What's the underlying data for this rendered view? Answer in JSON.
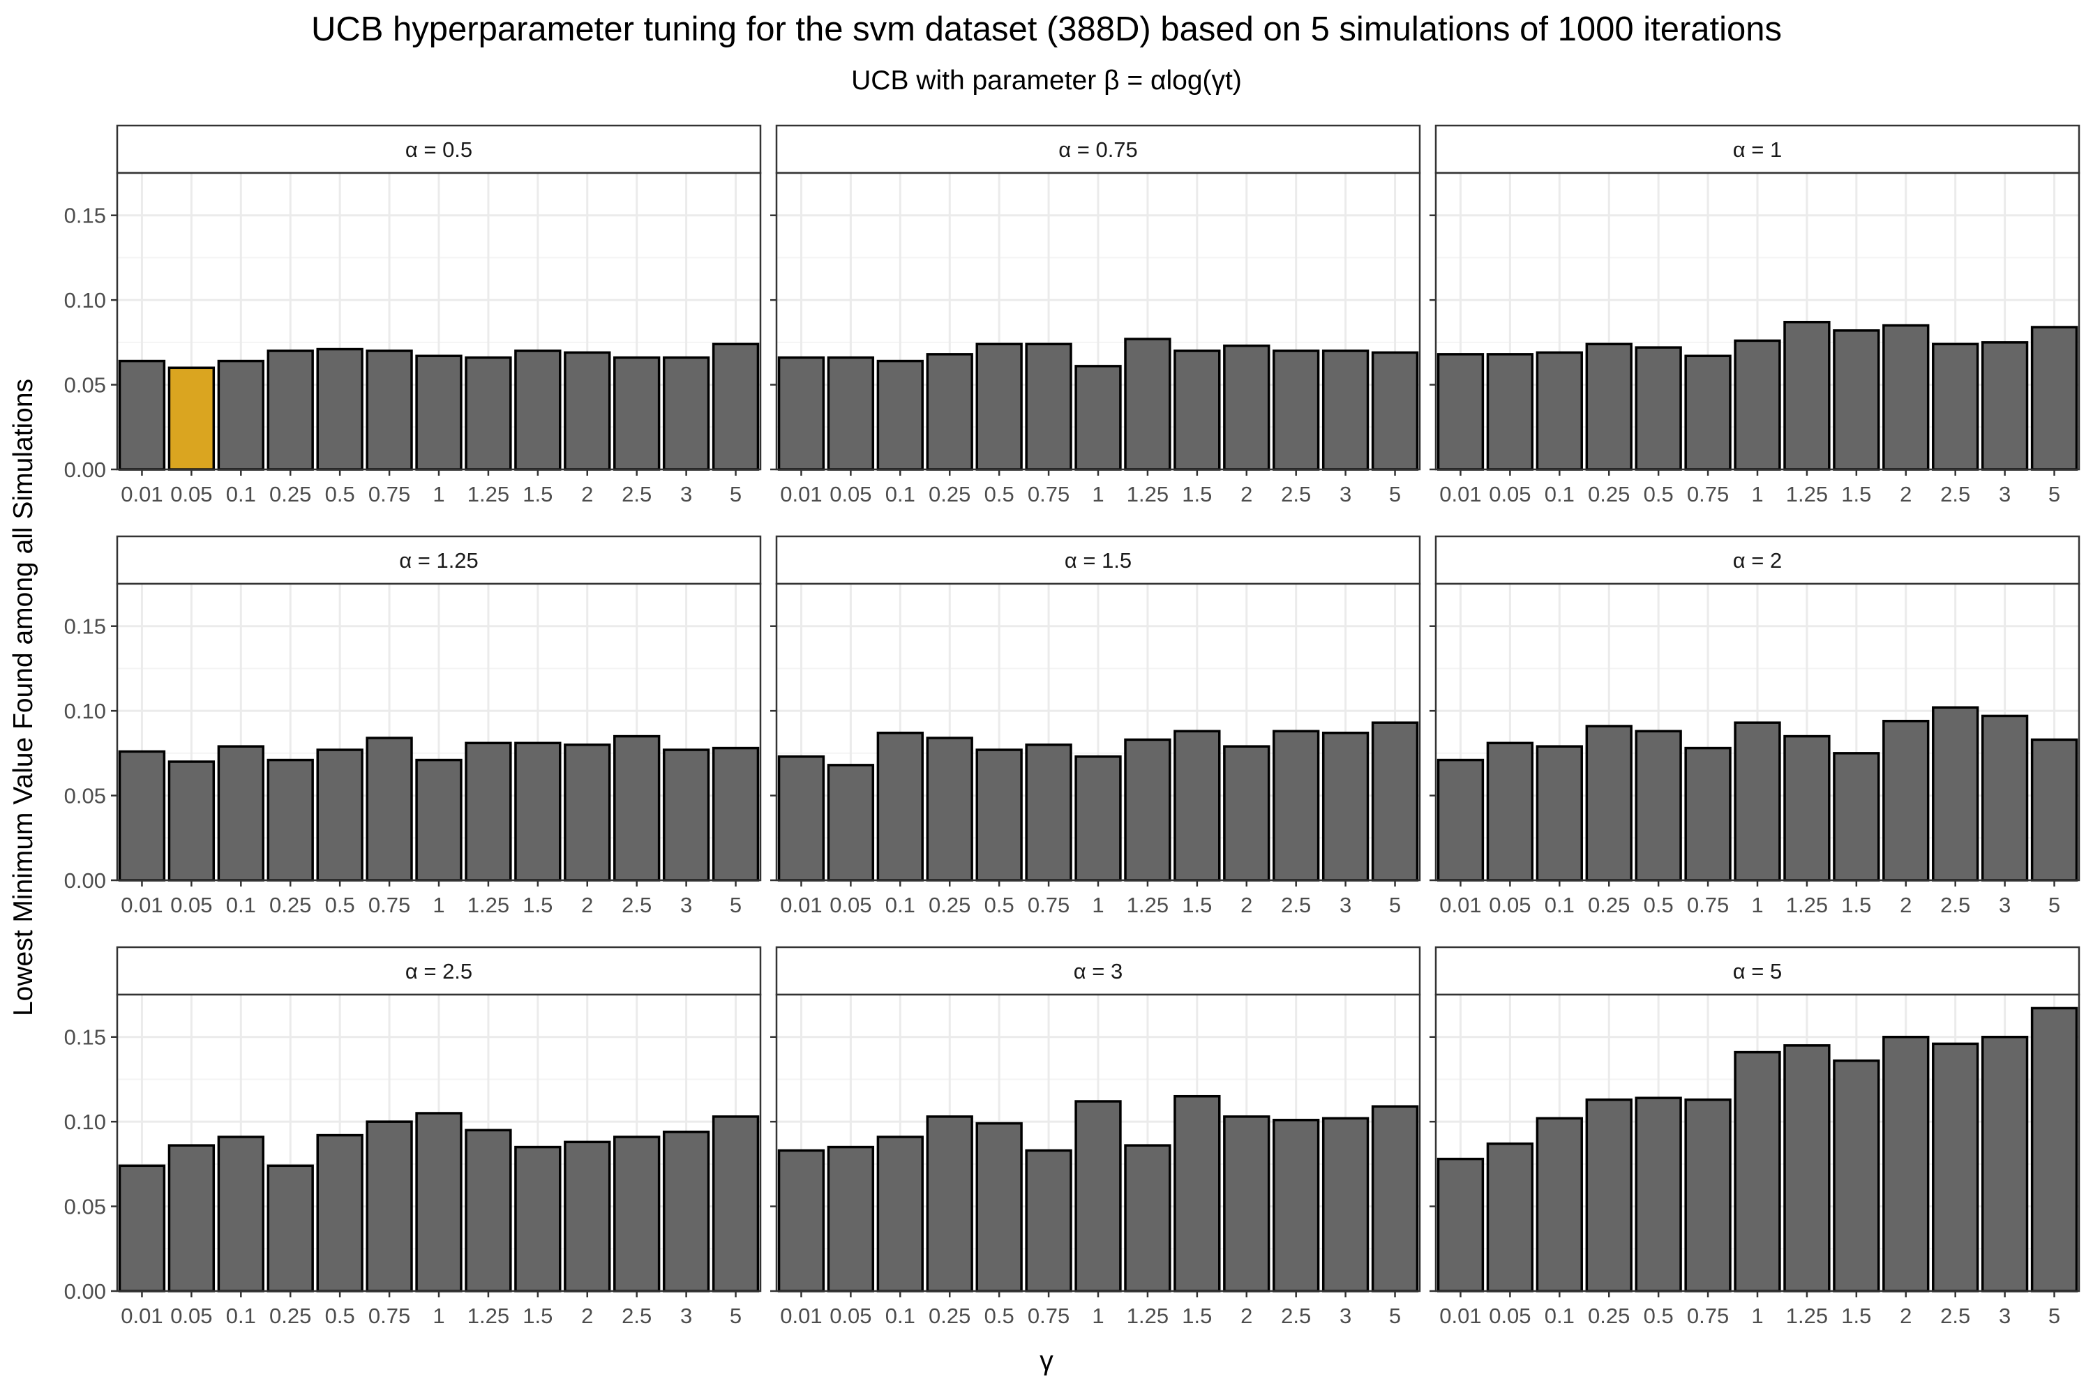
{
  "chart_data": {
    "type": "bar",
    "title": "UCB hyperparameter tuning for the svm dataset (388D) based on 5 simulations of 1000 iterations",
    "subtitle": "UCB with parameter β = αlog(γt)",
    "xlabel": "γ",
    "ylabel": "Lowest Minimum Value Found among all Simulations",
    "ylim": [
      0,
      0.175
    ],
    "yticks": [
      "0.00",
      "0.05",
      "0.10",
      "0.15"
    ],
    "grid": true,
    "categories": [
      "0.01",
      "0.05",
      "0.1",
      "0.25",
      "0.5",
      "0.75",
      "1",
      "1.25",
      "1.5",
      "2",
      "2.5",
      "3",
      "5"
    ],
    "colors": {
      "bar": "#666666",
      "highlight": "#DAA520",
      "outline": "#000000",
      "grid": "#ebebeb",
      "strip": "#ffffff"
    },
    "highlight": {
      "facet": 0,
      "index": 1
    },
    "facets": [
      {
        "label": "α = 0.5",
        "values": [
          0.064,
          0.06,
          0.064,
          0.07,
          0.071,
          0.07,
          0.067,
          0.066,
          0.07,
          0.069,
          0.066,
          0.066,
          0.074
        ]
      },
      {
        "label": "α = 0.75",
        "values": [
          0.066,
          0.066,
          0.064,
          0.068,
          0.074,
          0.074,
          0.061,
          0.077,
          0.07,
          0.073,
          0.07,
          0.07,
          0.069
        ]
      },
      {
        "label": "α = 1",
        "values": [
          0.068,
          0.068,
          0.069,
          0.074,
          0.072,
          0.067,
          0.076,
          0.087,
          0.082,
          0.085,
          0.074,
          0.075,
          0.084
        ]
      },
      {
        "label": "α = 1.25",
        "values": [
          0.076,
          0.07,
          0.079,
          0.071,
          0.077,
          0.084,
          0.071,
          0.081,
          0.081,
          0.08,
          0.085,
          0.077,
          0.078
        ]
      },
      {
        "label": "α = 1.5",
        "values": [
          0.073,
          0.068,
          0.087,
          0.084,
          0.077,
          0.08,
          0.073,
          0.083,
          0.088,
          0.079,
          0.088,
          0.087,
          0.093
        ]
      },
      {
        "label": "α = 2",
        "values": [
          0.071,
          0.081,
          0.079,
          0.091,
          0.088,
          0.078,
          0.093,
          0.085,
          0.075,
          0.094,
          0.102,
          0.097,
          0.083
        ]
      },
      {
        "label": "α = 2.5",
        "values": [
          0.074,
          0.086,
          0.091,
          0.074,
          0.092,
          0.1,
          0.105,
          0.095,
          0.085,
          0.088,
          0.091,
          0.094,
          0.103
        ]
      },
      {
        "label": "α = 3",
        "values": [
          0.083,
          0.085,
          0.091,
          0.103,
          0.099,
          0.083,
          0.112,
          0.086,
          0.115,
          0.103,
          0.101,
          0.102,
          0.109
        ]
      },
      {
        "label": "α = 5",
        "values": [
          0.078,
          0.087,
          0.102,
          0.113,
          0.114,
          0.113,
          0.141,
          0.145,
          0.136,
          0.15,
          0.146,
          0.15,
          0.167
        ]
      }
    ]
  }
}
